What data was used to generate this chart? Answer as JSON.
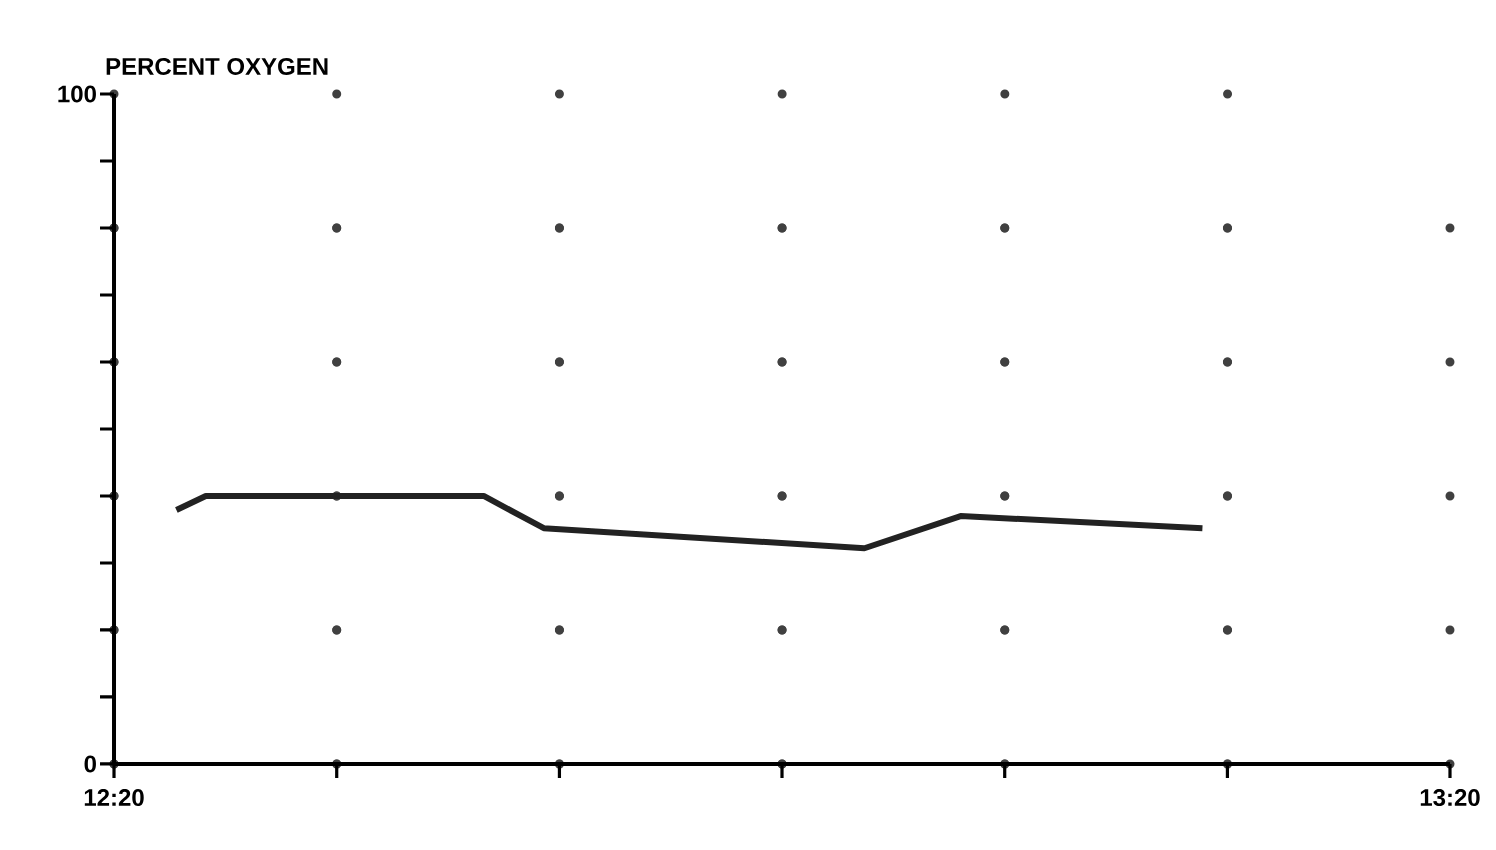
{
  "chart_data": {
    "type": "line",
    "ylabel": "PERCENT OXYGEN",
    "x": [
      12.38,
      12.402,
      12.61,
      12.655,
      12.895,
      12.967,
      13.148
    ],
    "values": [
      37.9,
      40.0,
      40.0,
      35.2,
      32.2,
      37.0,
      35.2
    ],
    "color": "#222222",
    "marker": "none",
    "line_style": "solid",
    "grid": true,
    "xlim": [
      12.3333,
      13.3333
    ],
    "xticks": [
      {
        "value": 12.3333,
        "label": "12:20"
      },
      {
        "value": 12.5,
        "label": null
      },
      {
        "value": 12.6667,
        "label": null
      },
      {
        "value": 12.8333,
        "label": null
      },
      {
        "value": 13.0,
        "label": null
      },
      {
        "value": 13.1667,
        "label": null
      },
      {
        "value": 13.3333,
        "label": "13:20"
      }
    ],
    "ylim": [
      0,
      100
    ],
    "yticks": [
      0,
      {
        "value": 20,
        "label": null
      },
      {
        "value": 40,
        "label": null
      },
      {
        "value": 60,
        "label": null
      },
      {
        "value": 80,
        "label": null
      },
      100
    ]
  }
}
